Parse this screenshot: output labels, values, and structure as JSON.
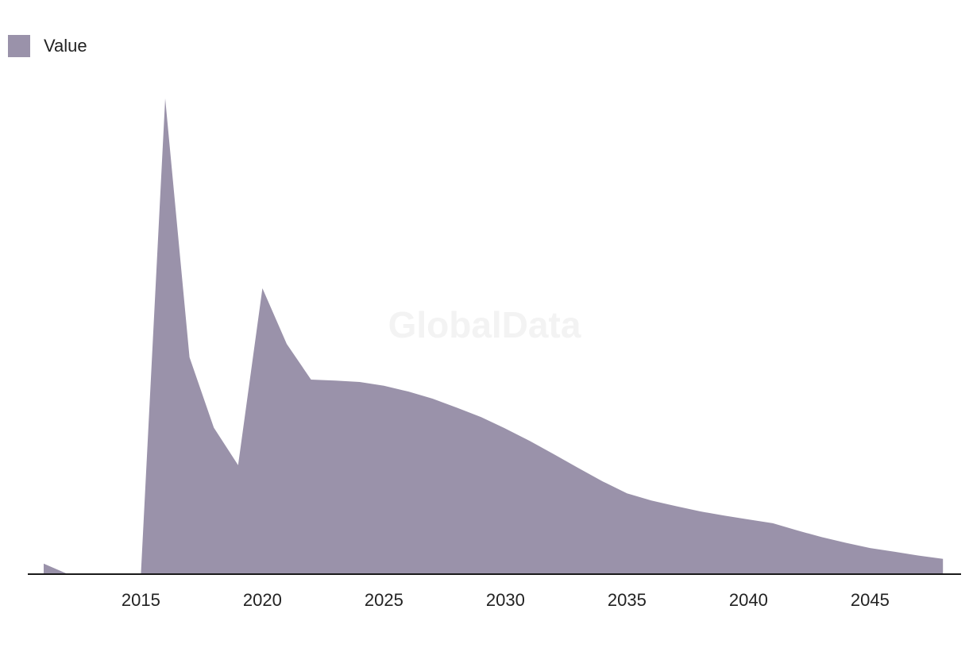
{
  "watermark": "GlobalData",
  "colors": {
    "area": "#9a92aa",
    "axis": "#1a1a1a",
    "text": "#222222"
  },
  "chart_data": {
    "type": "area",
    "title": "",
    "xlabel": "",
    "ylabel": "",
    "legend_position": "top-left",
    "grid": false,
    "y_axis_labels": false,
    "xlim": [
      2011,
      2048
    ],
    "ylim": [
      0,
      100
    ],
    "x_ticks": [
      2015,
      2020,
      2025,
      2030,
      2035,
      2040,
      2045
    ],
    "series": [
      {
        "name": "Value",
        "color": "#9a92aa",
        "x": [
          2011,
          2012,
          2013,
          2014,
          2015,
          2016,
          2017,
          2018,
          2019,
          2020,
          2021,
          2022,
          2023,
          2024,
          2025,
          2026,
          2027,
          2028,
          2029,
          2030,
          2031,
          2032,
          2033,
          2034,
          2035,
          2036,
          2037,
          2038,
          2039,
          2040,
          2041,
          2042,
          2043,
          2044,
          2045,
          2046,
          2047,
          2048
        ],
        "values": [
          2.2,
          0,
          0,
          0,
          0,
          100,
          45.6,
          30.8,
          22.9,
          60.1,
          48.4,
          40.9,
          40.7,
          40.4,
          39.6,
          38.4,
          36.9,
          35.0,
          33.0,
          30.6,
          28.0,
          25.2,
          22.3,
          19.5,
          17.0,
          15.5,
          14.3,
          13.2,
          12.3,
          11.5,
          10.7,
          9.2,
          7.8,
          6.6,
          5.5,
          4.7,
          3.9,
          3.2
        ]
      }
    ]
  }
}
